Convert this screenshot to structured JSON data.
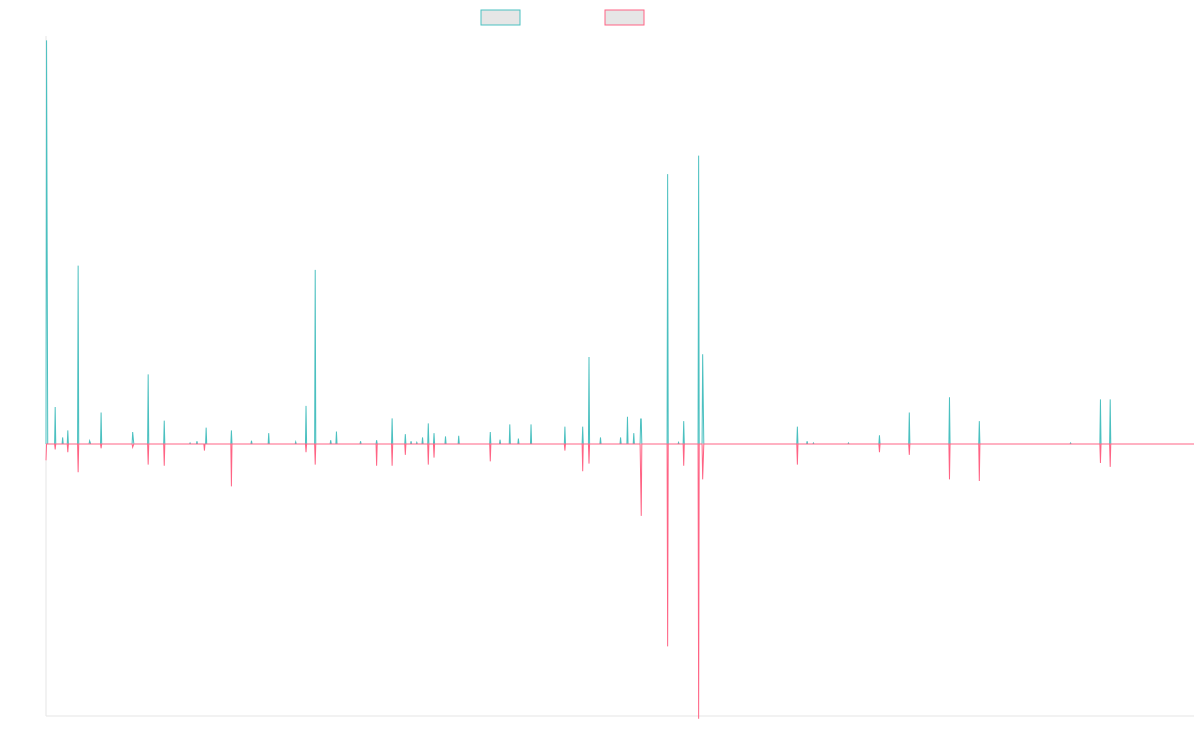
{
  "colors": {
    "series_a": "#4bc0c0",
    "series_b": "#ff6384",
    "legend_fill": "#e6e6e6",
    "axis": "#e5e5e5"
  },
  "chart_data": {
    "type": "line",
    "title": "",
    "xlabel": "",
    "ylabel": "",
    "legend": "top-center",
    "grid": false,
    "x_range": [
      0,
      2000
    ],
    "ylim": [
      -500,
      750
    ],
    "series": [
      {
        "name": "",
        "color": "#4bc0c0",
        "points": [
          [
            0,
            0
          ],
          [
            1,
            742
          ],
          [
            3,
            0
          ],
          [
            15,
            0
          ],
          [
            16,
            68
          ],
          [
            17,
            0
          ],
          [
            28,
            0
          ],
          [
            29,
            12
          ],
          [
            30,
            0
          ],
          [
            37,
            0
          ],
          [
            38,
            25
          ],
          [
            39,
            0
          ],
          [
            55,
            0
          ],
          [
            56,
            328
          ],
          [
            57,
            0
          ],
          [
            75,
            0
          ],
          [
            76,
            6
          ],
          [
            78,
            0
          ],
          [
            95,
            0
          ],
          [
            96,
            58
          ],
          [
            97,
            0
          ],
          [
            150,
            0
          ],
          [
            151,
            22
          ],
          [
            153,
            0
          ],
          [
            177,
            0
          ],
          [
            178,
            128
          ],
          [
            179,
            0
          ],
          [
            205,
            0
          ],
          [
            206,
            43
          ],
          [
            207,
            0
          ],
          [
            250,
            0
          ],
          [
            251,
            2
          ],
          [
            252,
            0
          ],
          [
            262,
            0
          ],
          [
            263,
            5
          ],
          [
            264,
            0
          ],
          [
            278,
            0
          ],
          [
            279,
            30
          ],
          [
            280,
            0
          ],
          [
            322,
            0
          ],
          [
            323,
            25
          ],
          [
            324,
            0
          ],
          [
            357,
            0
          ],
          [
            358,
            6
          ],
          [
            359,
            0
          ],
          [
            387,
            0
          ],
          [
            388,
            20
          ],
          [
            389,
            0
          ],
          [
            434,
            0
          ],
          [
            435,
            4
          ],
          [
            436,
            0
          ],
          [
            452,
            0
          ],
          [
            453,
            70
          ],
          [
            454,
            0
          ],
          [
            468,
            0
          ],
          [
            469,
            320
          ],
          [
            470,
            0
          ],
          [
            495,
            0
          ],
          [
            496,
            7
          ],
          [
            497,
            0
          ],
          [
            505,
            0
          ],
          [
            506,
            23
          ],
          [
            507,
            0
          ],
          [
            547,
            0
          ],
          [
            548,
            5
          ],
          [
            549,
            0
          ],
          [
            575,
            0
          ],
          [
            576,
            7
          ],
          [
            577,
            0
          ],
          [
            602,
            0
          ],
          [
            603,
            47
          ],
          [
            604,
            0
          ],
          [
            625,
            0
          ],
          [
            626,
            18
          ],
          [
            627,
            0
          ],
          [
            635,
            0
          ],
          [
            636,
            5
          ],
          [
            637,
            0
          ],
          [
            645,
            0
          ],
          [
            646,
            3
          ],
          [
            647,
            0
          ],
          [
            655,
            0
          ],
          [
            656,
            12
          ],
          [
            657,
            0
          ],
          [
            665,
            0
          ],
          [
            666,
            38
          ],
          [
            667,
            0
          ],
          [
            675,
            0
          ],
          [
            676,
            20
          ],
          [
            677,
            0
          ],
          [
            695,
            0
          ],
          [
            696,
            14
          ],
          [
            697,
            0
          ],
          [
            718,
            0
          ],
          [
            719,
            15
          ],
          [
            720,
            0
          ],
          [
            773,
            0
          ],
          [
            774,
            22
          ],
          [
            775,
            0
          ],
          [
            790,
            0
          ],
          [
            791,
            8
          ],
          [
            792,
            0
          ],
          [
            807,
            0
          ],
          [
            808,
            36
          ],
          [
            809,
            0
          ],
          [
            822,
            0
          ],
          [
            823,
            10
          ],
          [
            824,
            0
          ],
          [
            844,
            0
          ],
          [
            845,
            36
          ],
          [
            846,
            0
          ],
          [
            903,
            0
          ],
          [
            904,
            32
          ],
          [
            905,
            0
          ],
          [
            934,
            0
          ],
          [
            935,
            32
          ],
          [
            936,
            0
          ],
          [
            945,
            0
          ],
          [
            946,
            160
          ],
          [
            947,
            0
          ],
          [
            965,
            0
          ],
          [
            966,
            12
          ],
          [
            967,
            0
          ],
          [
            1000,
            0
          ],
          [
            1001,
            12
          ],
          [
            1002,
            0
          ],
          [
            1012,
            0
          ],
          [
            1013,
            50
          ],
          [
            1014,
            0
          ],
          [
            1023,
            0
          ],
          [
            1024,
            20
          ],
          [
            1025,
            0
          ],
          [
            1035,
            0
          ],
          [
            1036,
            46
          ],
          [
            1037,
            46
          ],
          [
            1038,
            0
          ],
          [
            1082,
            0
          ],
          [
            1083,
            496
          ],
          [
            1084,
            0
          ],
          [
            1101,
            0
          ],
          [
            1102,
            3
          ],
          [
            1103,
            0
          ],
          [
            1110,
            0
          ],
          [
            1111,
            42
          ],
          [
            1112,
            0
          ],
          [
            1136,
            0
          ],
          [
            1137,
            530
          ],
          [
            1138,
            0
          ],
          [
            1143,
            0
          ],
          [
            1144,
            165
          ],
          [
            1146,
            0
          ],
          [
            1308,
            0
          ],
          [
            1309,
            32
          ],
          [
            1310,
            0
          ],
          [
            1325,
            0
          ],
          [
            1326,
            5
          ],
          [
            1327,
            0
          ],
          [
            1336,
            0
          ],
          [
            1337,
            2
          ],
          [
            1338,
            0
          ],
          [
            1397,
            0
          ],
          [
            1398,
            2
          ],
          [
            1399,
            0
          ],
          [
            1451,
            0
          ],
          [
            1452,
            16
          ],
          [
            1453,
            0
          ],
          [
            1503,
            0
          ],
          [
            1504,
            58
          ],
          [
            1505,
            0
          ],
          [
            1573,
            0
          ],
          [
            1574,
            86
          ],
          [
            1575,
            0
          ],
          [
            1625,
            0
          ],
          [
            1626,
            42
          ],
          [
            1627,
            0
          ],
          [
            1784,
            0
          ],
          [
            1785,
            2
          ],
          [
            1786,
            0
          ],
          [
            1836,
            0
          ],
          [
            1837,
            82
          ],
          [
            1838,
            0
          ],
          [
            1853,
            0
          ],
          [
            1854,
            82
          ],
          [
            1855,
            0
          ],
          [
            2000,
            0
          ]
        ]
      },
      {
        "name": "",
        "color": "#ff6384",
        "points": [
          [
            0,
            -30
          ],
          [
            1,
            0
          ],
          [
            15,
            0
          ],
          [
            16,
            -10
          ],
          [
            17,
            0
          ],
          [
            37,
            0
          ],
          [
            38,
            -15
          ],
          [
            39,
            0
          ],
          [
            55,
            0
          ],
          [
            56,
            -52
          ],
          [
            57,
            0
          ],
          [
            95,
            0
          ],
          [
            96,
            -8
          ],
          [
            97,
            0
          ],
          [
            150,
            0
          ],
          [
            151,
            -6
          ],
          [
            153,
            0
          ],
          [
            177,
            0
          ],
          [
            178,
            -38
          ],
          [
            179,
            0
          ],
          [
            205,
            0
          ],
          [
            206,
            -40
          ],
          [
            207,
            0
          ],
          [
            275,
            0
          ],
          [
            276,
            -12
          ],
          [
            277,
            0
          ],
          [
            322,
            0
          ],
          [
            323,
            -78
          ],
          [
            324,
            0
          ],
          [
            452,
            0
          ],
          [
            453,
            -15
          ],
          [
            454,
            0
          ],
          [
            468,
            0
          ],
          [
            469,
            -38
          ],
          [
            470,
            0
          ],
          [
            575,
            0
          ],
          [
            576,
            -40
          ],
          [
            577,
            0
          ],
          [
            602,
            0
          ],
          [
            603,
            -40
          ],
          [
            604,
            0
          ],
          [
            625,
            0
          ],
          [
            626,
            -20
          ],
          [
            627,
            0
          ],
          [
            665,
            0
          ],
          [
            666,
            -38
          ],
          [
            667,
            0
          ],
          [
            675,
            0
          ],
          [
            676,
            -25
          ],
          [
            677,
            0
          ],
          [
            773,
            0
          ],
          [
            774,
            -32
          ],
          [
            775,
            0
          ],
          [
            903,
            0
          ],
          [
            904,
            -12
          ],
          [
            905,
            0
          ],
          [
            934,
            0
          ],
          [
            935,
            -50
          ],
          [
            936,
            0
          ],
          [
            945,
            0
          ],
          [
            946,
            -36
          ],
          [
            947,
            0
          ],
          [
            1035,
            0
          ],
          [
            1037,
            -132
          ],
          [
            1038,
            0
          ],
          [
            1082,
            0
          ],
          [
            1083,
            -372
          ],
          [
            1084,
            0
          ],
          [
            1110,
            0
          ],
          [
            1111,
            -40
          ],
          [
            1112,
            0
          ],
          [
            1136,
            0
          ],
          [
            1137,
            -505
          ],
          [
            1138,
            0
          ],
          [
            1143,
            0
          ],
          [
            1144,
            -65
          ],
          [
            1146,
            0
          ],
          [
            1308,
            0
          ],
          [
            1309,
            -38
          ],
          [
            1310,
            0
          ],
          [
            1451,
            0
          ],
          [
            1452,
            -15
          ],
          [
            1453,
            0
          ],
          [
            1503,
            0
          ],
          [
            1504,
            -20
          ],
          [
            1505,
            0
          ],
          [
            1573,
            0
          ],
          [
            1574,
            -65
          ],
          [
            1575,
            0
          ],
          [
            1625,
            0
          ],
          [
            1626,
            -68
          ],
          [
            1627,
            0
          ],
          [
            1836,
            0
          ],
          [
            1837,
            -35
          ],
          [
            1838,
            0
          ],
          [
            1853,
            0
          ],
          [
            1854,
            -42
          ],
          [
            1855,
            0
          ],
          [
            2000,
            0
          ]
        ]
      }
    ]
  }
}
